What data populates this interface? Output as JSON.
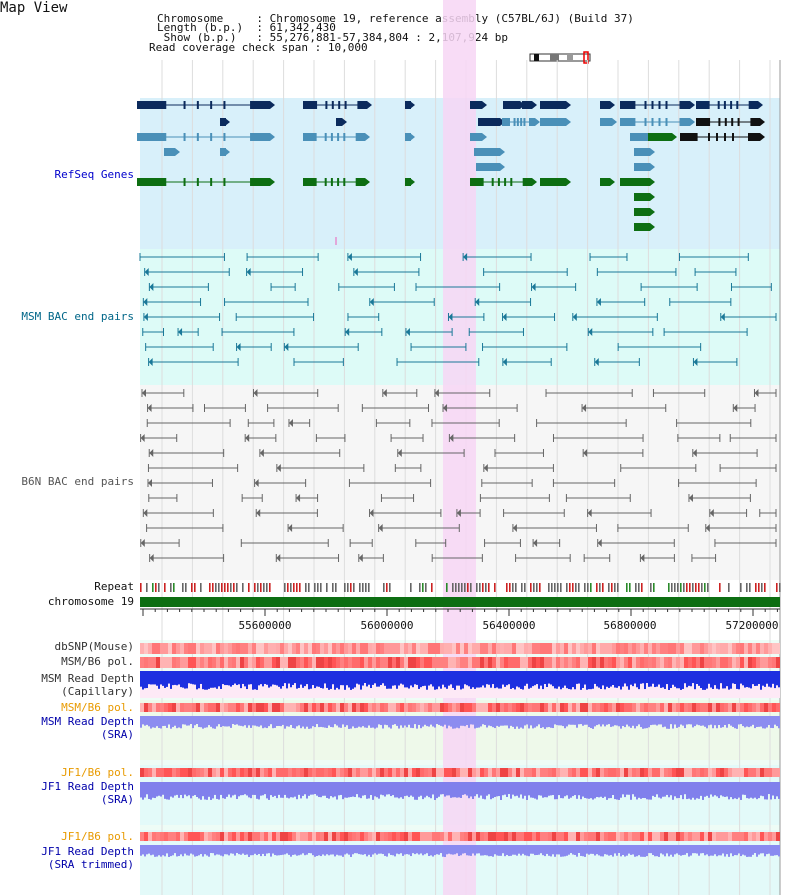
{
  "header": {
    "title": "Map View",
    "rows": [
      {
        "label": "Chromosome     ",
        "value": "Chromosome 19, reference assembly (C57BL/6J) (Build 37)"
      },
      {
        "label": "Length (b.p.)  ",
        "value": "61,342,430"
      },
      {
        "label": " Show (b.p.)   ",
        "value": "55,276,881-57,384,804 : 2,107,924 bp"
      },
      {
        "label": "Read coverage check span",
        "value": "10,000"
      }
    ]
  },
  "tracks": {
    "refseq": "RefSeq Genes",
    "msm_bac": "MSM BAC end pairs",
    "b6n_bac": "B6N BAC end pairs",
    "repeat": "Repeat",
    "chromosome": "chromosome 19",
    "dbsnp": "dbSNP(Mouse)",
    "msm_b6_pol_1": "MSM/B6 pol.",
    "msm_depth_cap_1": "MSM Read Depth",
    "msm_depth_cap_2": "(Capillary)",
    "msm_b6_pol_2": "MSM/B6 pol.",
    "msm_depth_sra_1": "MSM Read Depth",
    "msm_depth_sra_2": "(SRA)",
    "jf1_b6_pol_1": "JF1/B6 pol.",
    "jf1_depth_sra_1": "JF1 Read Depth",
    "jf1_depth_sra_2": "(SRA)",
    "jf1_b6_pol_2": "JF1/B6 pol.",
    "jf1_depth_trim_1": "JF1 Read Depth",
    "jf1_depth_trim_2": "(SRA trimmed)"
  },
  "axis": {
    "ticks": [
      "55600000",
      "56000000",
      "56400000",
      "56800000",
      "57200000"
    ]
  },
  "colors": {
    "refseq_label": "#0000cc",
    "msm_label": "#006688",
    "b6n_label": "#555555",
    "orange_label": "#e89a00",
    "blue_label": "#0000aa",
    "highlight": "#f7d6f5",
    "refseq_bg": "#d8f0fa",
    "msm_bg": "#ddfbf7",
    "depth_bg": "#eef9ea",
    "navy": "#0b2a5c",
    "steel": "#4a90b8",
    "green": "#0d6e12",
    "chromosome": "#0d6e12"
  }
}
